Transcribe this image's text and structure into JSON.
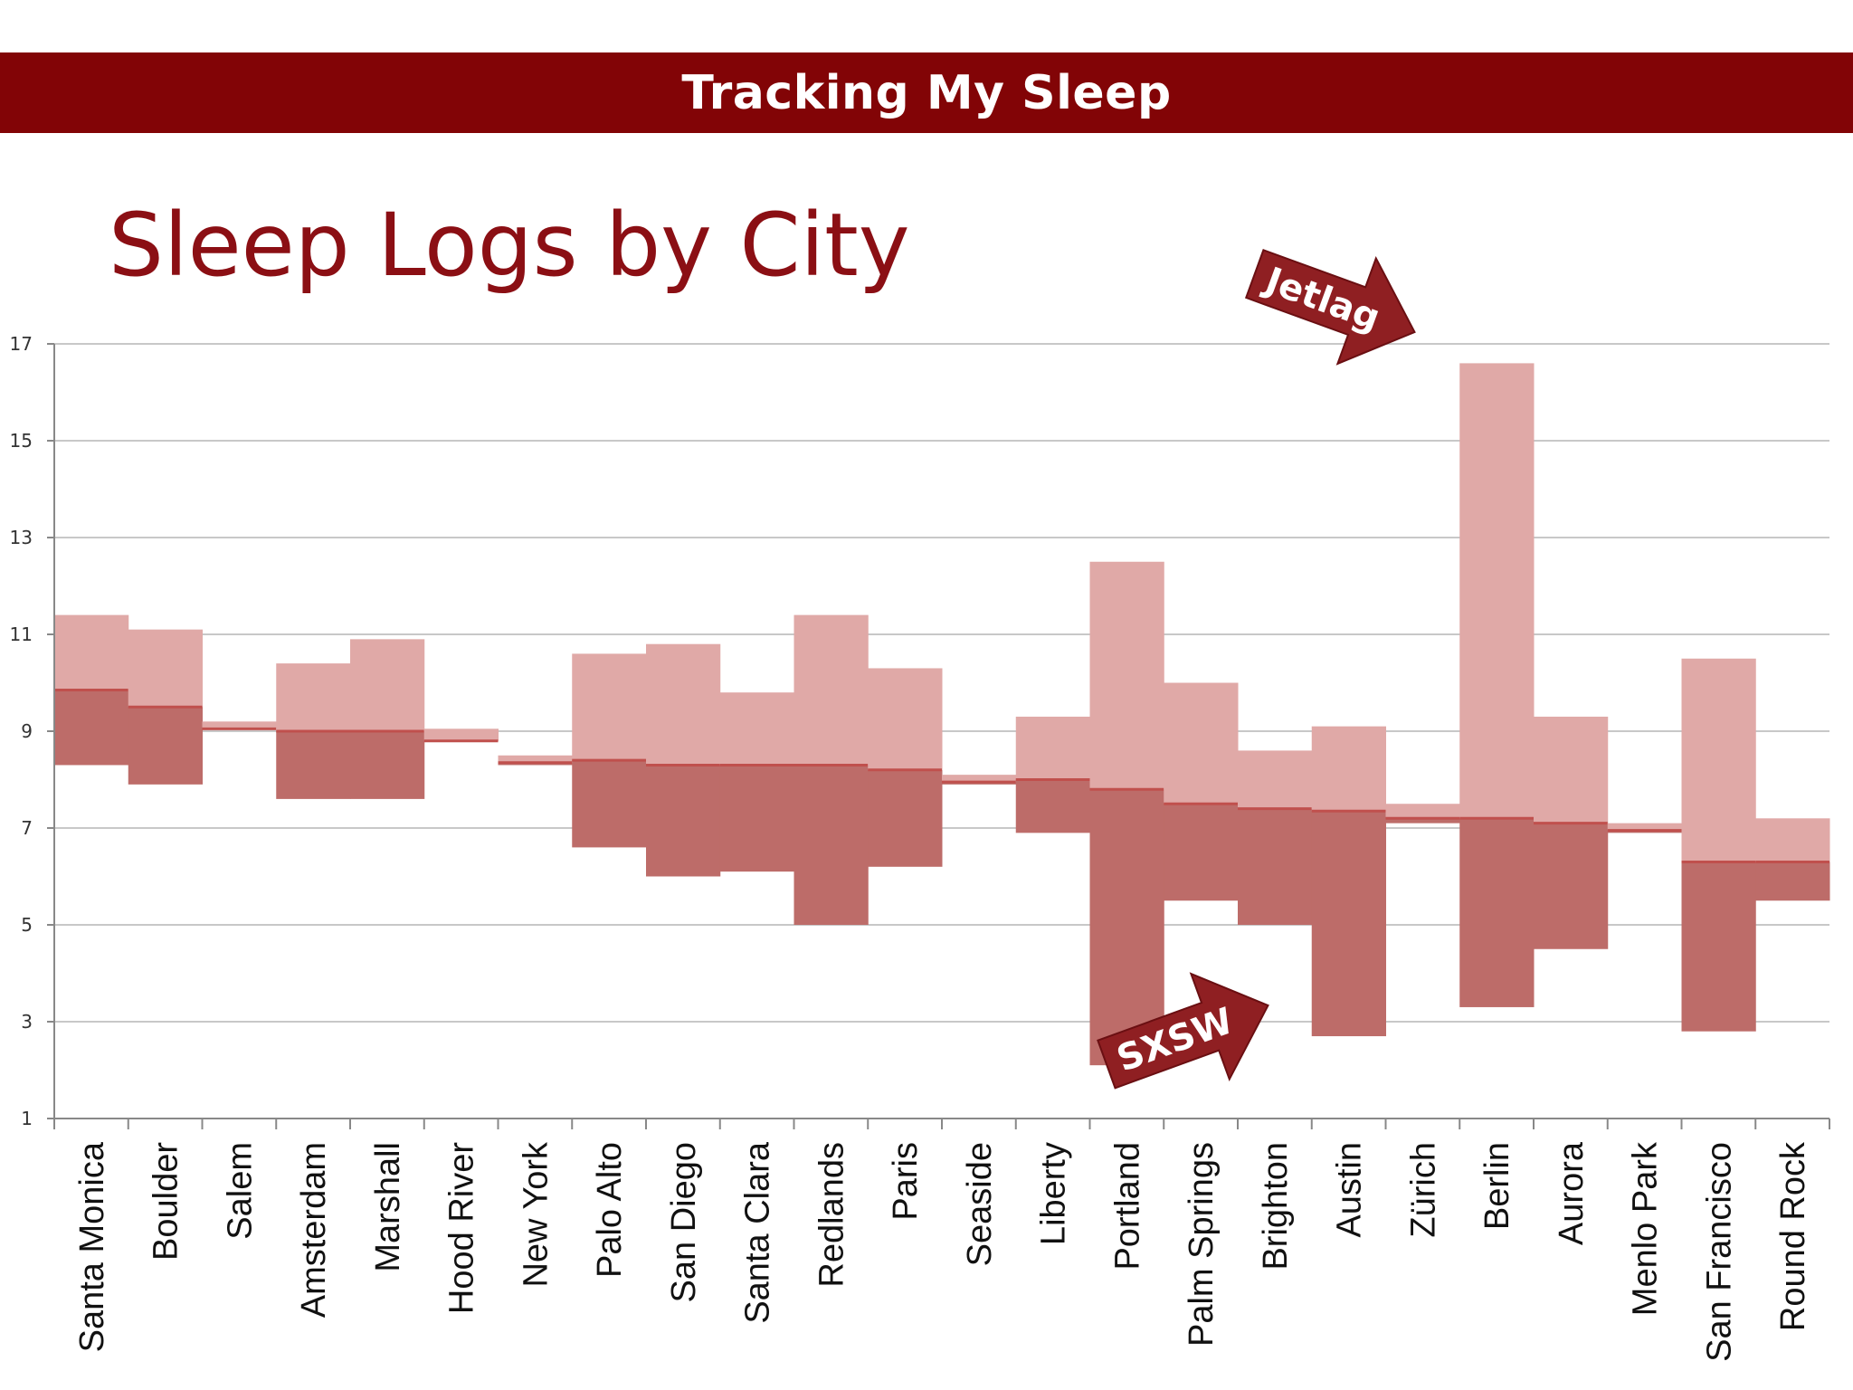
{
  "banner": {
    "title": "Tracking My Sleep"
  },
  "slide": {
    "title": "Sleep Logs by City"
  },
  "colors": {
    "banner": "#820406",
    "title": "#8b0f14",
    "light_band": "#e0a9a7",
    "dark_band": "#bd6c69",
    "median": "#c0504d",
    "gridline": "#c8c8c8",
    "callout": "#8f1f22"
  },
  "chart_data": {
    "type": "bar",
    "title": "Sleep Logs by City",
    "ylim": [
      1,
      17
    ],
    "yticks": [
      1,
      3,
      5,
      7,
      9,
      11,
      13,
      15,
      17
    ],
    "grid": true,
    "categories": [
      "Santa Monica",
      "Boulder",
      "Salem",
      "Amsterdam",
      "Marshall",
      "Hood River",
      "New York",
      "Palo Alto",
      "San Diego",
      "Santa Clara",
      "Redlands",
      "Paris",
      "Seaside",
      "Liberty",
      "Portland",
      "Palm Springs",
      "Brighton",
      "Austin",
      "Zürich",
      "Berlin",
      "Aurora",
      "Menlo Park",
      "San Francisco",
      "Round Rock"
    ],
    "series": [
      {
        "role": "low",
        "values": [
          8.3,
          7.9,
          9.05,
          7.6,
          7.6,
          8.8,
          8.3,
          6.6,
          6.0,
          6.1,
          5.0,
          6.2,
          7.9,
          6.9,
          2.1,
          5.5,
          5.0,
          2.7,
          7.1,
          3.3,
          4.5,
          6.9,
          2.8,
          5.5
        ]
      },
      {
        "role": "median",
        "values": [
          9.85,
          9.5,
          9.05,
          9.0,
          9.0,
          8.8,
          8.35,
          8.4,
          8.3,
          8.3,
          8.3,
          8.2,
          7.95,
          8.0,
          7.8,
          7.5,
          7.4,
          7.35,
          7.2,
          7.2,
          7.1,
          6.95,
          6.3,
          6.3
        ]
      },
      {
        "role": "high",
        "values": [
          11.4,
          11.1,
          9.2,
          10.4,
          10.9,
          9.05,
          8.5,
          10.6,
          10.8,
          9.8,
          11.4,
          10.3,
          8.1,
          9.3,
          12.5,
          10.0,
          8.6,
          9.1,
          7.5,
          16.6,
          9.3,
          7.1,
          10.5,
          7.2
        ]
      }
    ],
    "annotations": [
      {
        "text": "Jetlag",
        "target": "Berlin"
      },
      {
        "text": "SXSW",
        "target": "Austin"
      }
    ]
  }
}
